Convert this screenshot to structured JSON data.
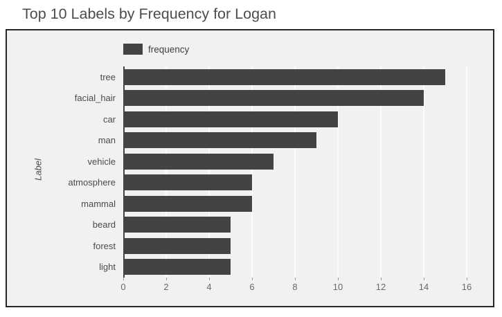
{
  "chart_data": {
    "type": "bar",
    "orientation": "horizontal",
    "title": "Top 10 Labels by Frequency for Logan",
    "series_name": "frequency",
    "categories": [
      "tree",
      "facial_hair",
      "car",
      "man",
      "vehicle",
      "atmosphere",
      "mammal",
      "beard",
      "forest",
      "light"
    ],
    "values": [
      15,
      14,
      10,
      9,
      7,
      6,
      6,
      5,
      5,
      5
    ],
    "xlabel": "",
    "ylabel": "Label",
    "xlim": [
      0,
      16
    ],
    "xticks": [
      0,
      2,
      4,
      6,
      8,
      10,
      12,
      14,
      16
    ],
    "grid": true,
    "legend_position": "top-left",
    "colors": {
      "bar": "#434343",
      "plot_background": "#f1f1f1",
      "gridline": "#fbfbfb",
      "box_border": "#262626",
      "title_text": "#4d4d4d",
      "axis_text": "#696969",
      "category_text": "#4a4a4a"
    }
  }
}
